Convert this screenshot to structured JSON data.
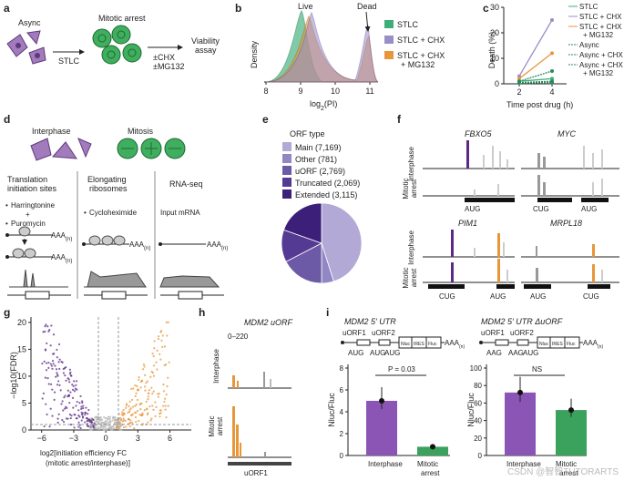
{
  "panels": {
    "a": "a",
    "b": "b",
    "c": "c",
    "d": "d",
    "e": "e",
    "f": "f",
    "g": "g",
    "h": "h",
    "i": "i"
  },
  "a": {
    "async": "Async",
    "stlc": "STLC",
    "mitotic_arrest": "Mitotic arrest",
    "cond1": "±CHX",
    "cond2": "±MG132",
    "viab1": "Viability",
    "viab2": "assay"
  },
  "b": {
    "chart_type": "density",
    "ylabel": "Density",
    "xlabel_main": "log",
    "xlabel_sub": "2",
    "xlabel_rest": "(PI)",
    "xticks": [
      "8",
      "9",
      "10",
      "11"
    ],
    "live": "Live",
    "dead": "Dead",
    "legend": [
      "STLC",
      "STLC + CHX",
      "STLC + CHX",
      "+ MG132"
    ],
    "colors": {
      "stlc": "#3fae7a",
      "chx": "#9a8ec8",
      "mg": "#e8963a"
    }
  },
  "c": {
    "ylabel": "Death (%)",
    "xlabel": "Time post drug (h)",
    "xticks": [
      "2",
      "4"
    ],
    "yticks": [
      "0",
      "10",
      "20",
      "30"
    ],
    "legend": [
      "STLC",
      "STLC + CHX",
      "STLC + CHX",
      "+ MG132",
      "Async",
      "Async + CHX",
      "Async + CHX",
      "+ MG132"
    ],
    "series": [
      {
        "name": "STLC",
        "t": [
          2,
          4
        ],
        "v": [
          1,
          2
        ]
      },
      {
        "name": "STLC + CHX",
        "t": [
          2,
          4
        ],
        "v": [
          3,
          25
        ]
      },
      {
        "name": "STLC + CHX + MG132",
        "t": [
          2,
          4
        ],
        "v": [
          2,
          12
        ]
      },
      {
        "name": "Async",
        "t": [
          2,
          4
        ],
        "v": [
          0.5,
          1
        ]
      },
      {
        "name": "Async + CHX",
        "t": [
          2,
          4
        ],
        "v": [
          0.3,
          0.5
        ]
      },
      {
        "name": "Async + CHX + MG132",
        "t": [
          2,
          4
        ],
        "v": [
          1,
          5
        ]
      }
    ]
  },
  "d": {
    "interphase": "Interphase",
    "mitosis": "Mitosis",
    "col1": [
      "Translation",
      "initiation sites"
    ],
    "col2": [
      "Elongating",
      "ribosomes"
    ],
    "col3": "RNA-seq",
    "harr": "Harringtonine",
    "plus": "+",
    "puro": "Puromycin",
    "chx": "Cycloheximide",
    "input": "Input mRNA",
    "aaa": "AAA",
    "n": "(n)"
  },
  "e": {
    "title": "ORF type",
    "chart_data": {
      "type": "pie",
      "title": "ORF type",
      "labels": [
        "Main (7,169)",
        "Other (781)",
        "uORF (2,769)",
        "Truncated (2,069)",
        "Extended (3,115)"
      ],
      "values": [
        7169,
        781,
        2769,
        2069,
        3115
      ],
      "colors": [
        "#b2a9d6",
        "#9187c2",
        "#6d5aa6",
        "#543a93",
        "#3b1f78"
      ]
    }
  },
  "f": {
    "genes": [
      "FBXO5",
      "MYC",
      "PIM1",
      "MRPL18"
    ],
    "interphase": "Interphase",
    "mitotic": "Mitotic",
    "arrest": "arrest",
    "codons": [
      "AUG",
      "CUG",
      "AUG",
      "CUG",
      "AUG",
      "AUG",
      "CUG"
    ]
  },
  "g": {
    "ylabel": "−log10(FDR)",
    "xlabel1": "log2[initiation efficiency FC",
    "xlabel2": "(mitotic arrest/interphase)]",
    "xticks": [
      "−6",
      "−3",
      "0",
      "3",
      "6"
    ],
    "yticks": [
      "0",
      "5",
      "10",
      "15",
      "20"
    ]
  },
  "h": {
    "title": "MDM2 uORF",
    "range": "0–220",
    "interphase": "Interphase",
    "mitotic": "Mitotic",
    "arrest": "arrest",
    "uorf": "uORF1"
  },
  "i": {
    "title1": "MDM2 5′ UTR",
    "title2": "MDM2 5′ UTR ΔuORF",
    "uorf1": "uORF1",
    "uorf2": "uORF2",
    "aug": "AUG",
    "aag": "AAG",
    "nluc": "Nluc",
    "ires": "IRES",
    "fluc": "Fluc",
    "aaa": "AAA",
    "n": "(n)",
    "pval": "P = 0.03",
    "ns": "NS",
    "ylabel": "Nluc/Fluc",
    "bars1": {
      "categories": [
        "Interphase",
        "Mitotic arrest"
      ],
      "values": [
        5.0,
        0.8
      ]
    },
    "bars2": {
      "categories": [
        "Interphase",
        "Mitotic arrest"
      ],
      "values": [
        72,
        52
      ]
    },
    "cat": [
      "Interphase",
      "Mitotic",
      "arrest"
    ]
  },
  "watermark": "CSDN @智智TUTORARTS"
}
